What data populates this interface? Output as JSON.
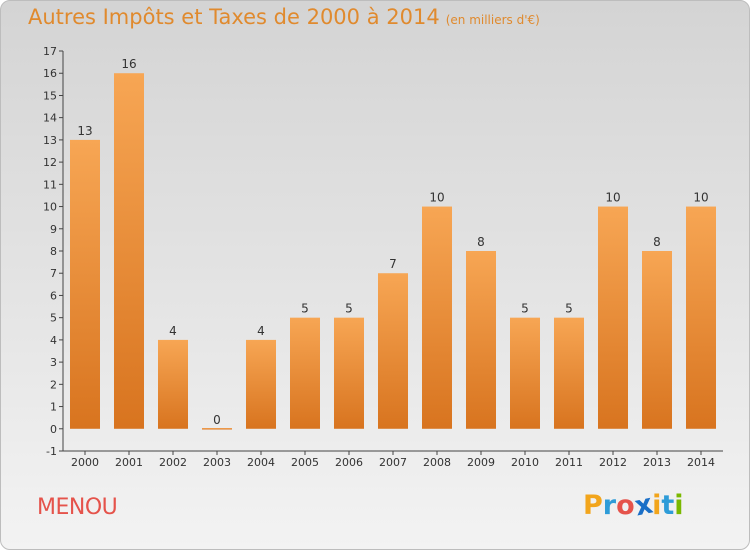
{
  "header": {
    "title": "Autres Impôts et Taxes de 2000 à 2014",
    "unit": "(en milliers d'€)"
  },
  "footer": {
    "commune": "MENOU",
    "logo_letters": [
      "P",
      "r",
      "o",
      "x",
      "i",
      "t",
      "i"
    ],
    "logo_colors": [
      "#f2a51c",
      "#2e9cd8",
      "#e5534b",
      "#1a6fc7",
      "#f2a51c",
      "#2e9cd8",
      "#7ab800"
    ]
  },
  "chart_data": {
    "type": "bar",
    "title": "Autres Impôts et Taxes de 2000 à 2014",
    "subtitle": "(en milliers d'€)",
    "categories": [
      "2000",
      "2001",
      "2002",
      "2003",
      "2004",
      "2005",
      "2006",
      "2007",
      "2008",
      "2009",
      "2010",
      "2011",
      "2012",
      "2013",
      "2014"
    ],
    "values": [
      13,
      16,
      4,
      0,
      4,
      5,
      5,
      7,
      10,
      8,
      5,
      5,
      10,
      8,
      10
    ],
    "ylim": [
      -1,
      17
    ],
    "yticks": [
      "-1",
      "0",
      "1",
      "2",
      "3",
      "4",
      "5",
      "6",
      "7",
      "8",
      "9",
      "10",
      "11",
      "12",
      "13",
      "14",
      "15",
      "16",
      "17"
    ],
    "grid": false,
    "bar_color_top": "#f7a654",
    "bar_color_bottom": "#d8741f"
  }
}
